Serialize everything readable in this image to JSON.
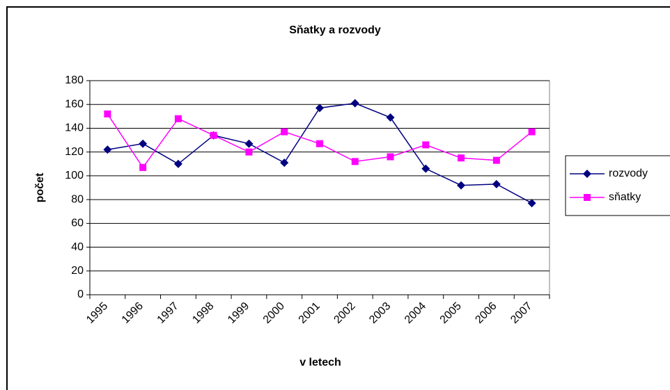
{
  "chart_data": {
    "type": "line",
    "title": "Sňatky a rozvody",
    "x_label": "v letech",
    "y_label": "počet",
    "categories": [
      "1995",
      "1996",
      "1997",
      "1998",
      "1999",
      "2000",
      "2001",
      "2002",
      "2003",
      "2004",
      "2005",
      "2006",
      "2007"
    ],
    "series": [
      {
        "name": "rozvody",
        "color": "#000080",
        "marker": "diamond",
        "values": [
          122,
          127,
          110,
          134,
          127,
          111,
          157,
          161,
          149,
          106,
          92,
          93,
          77
        ]
      },
      {
        "name": "sňatky",
        "color": "#ff00ff",
        "marker": "square",
        "values": [
          152,
          107,
          148,
          134,
          120,
          137,
          127,
          112,
          116,
          126,
          115,
          113,
          137
        ]
      }
    ],
    "ylim": [
      0,
      180
    ],
    "yticks": [
      0,
      20,
      40,
      60,
      80,
      100,
      120,
      140,
      160,
      180
    ],
    "grid": true,
    "legend": "right"
  }
}
